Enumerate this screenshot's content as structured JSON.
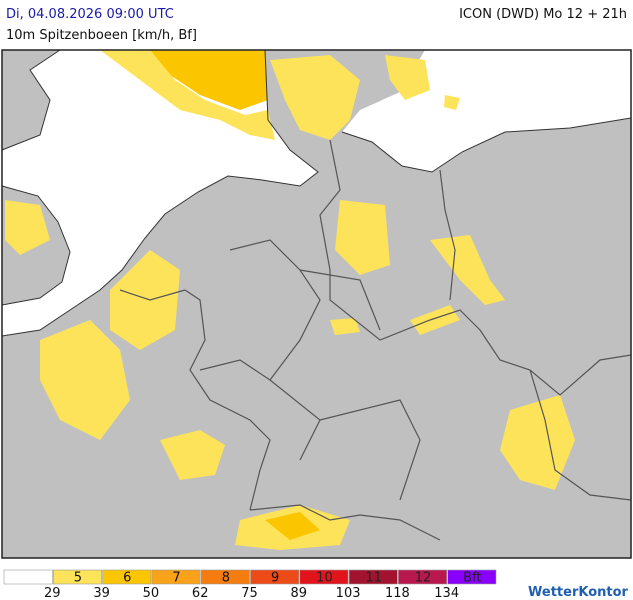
{
  "header": {
    "title_left": "Di, 04.08.2026 09:00 UTC",
    "title_right": "ICON (DWD) Mo 12 + 21h",
    "subtitle": "10m Spitzenboeen [km/h, Bf]"
  },
  "legend": {
    "classes": [
      {
        "label": "",
        "color": "#ffffff"
      },
      {
        "label": "5",
        "color": "#fde35a"
      },
      {
        "label": "6",
        "color": "#fbc600"
      },
      {
        "label": "7",
        "color": "#f9a21a"
      },
      {
        "label": "8",
        "color": "#f57c0e"
      },
      {
        "label": "9",
        "color": "#ec4a17"
      },
      {
        "label": "10",
        "color": "#e1141c"
      },
      {
        "label": "11",
        "color": "#a2132f"
      },
      {
        "label": "12",
        "color": "#b9184f"
      },
      {
        "label": "Bft",
        "color": "#8a00ff"
      }
    ],
    "thresholds": [
      29,
      39,
      50,
      62,
      75,
      89,
      103,
      118,
      134
    ]
  },
  "logo": "WetterKontor"
}
